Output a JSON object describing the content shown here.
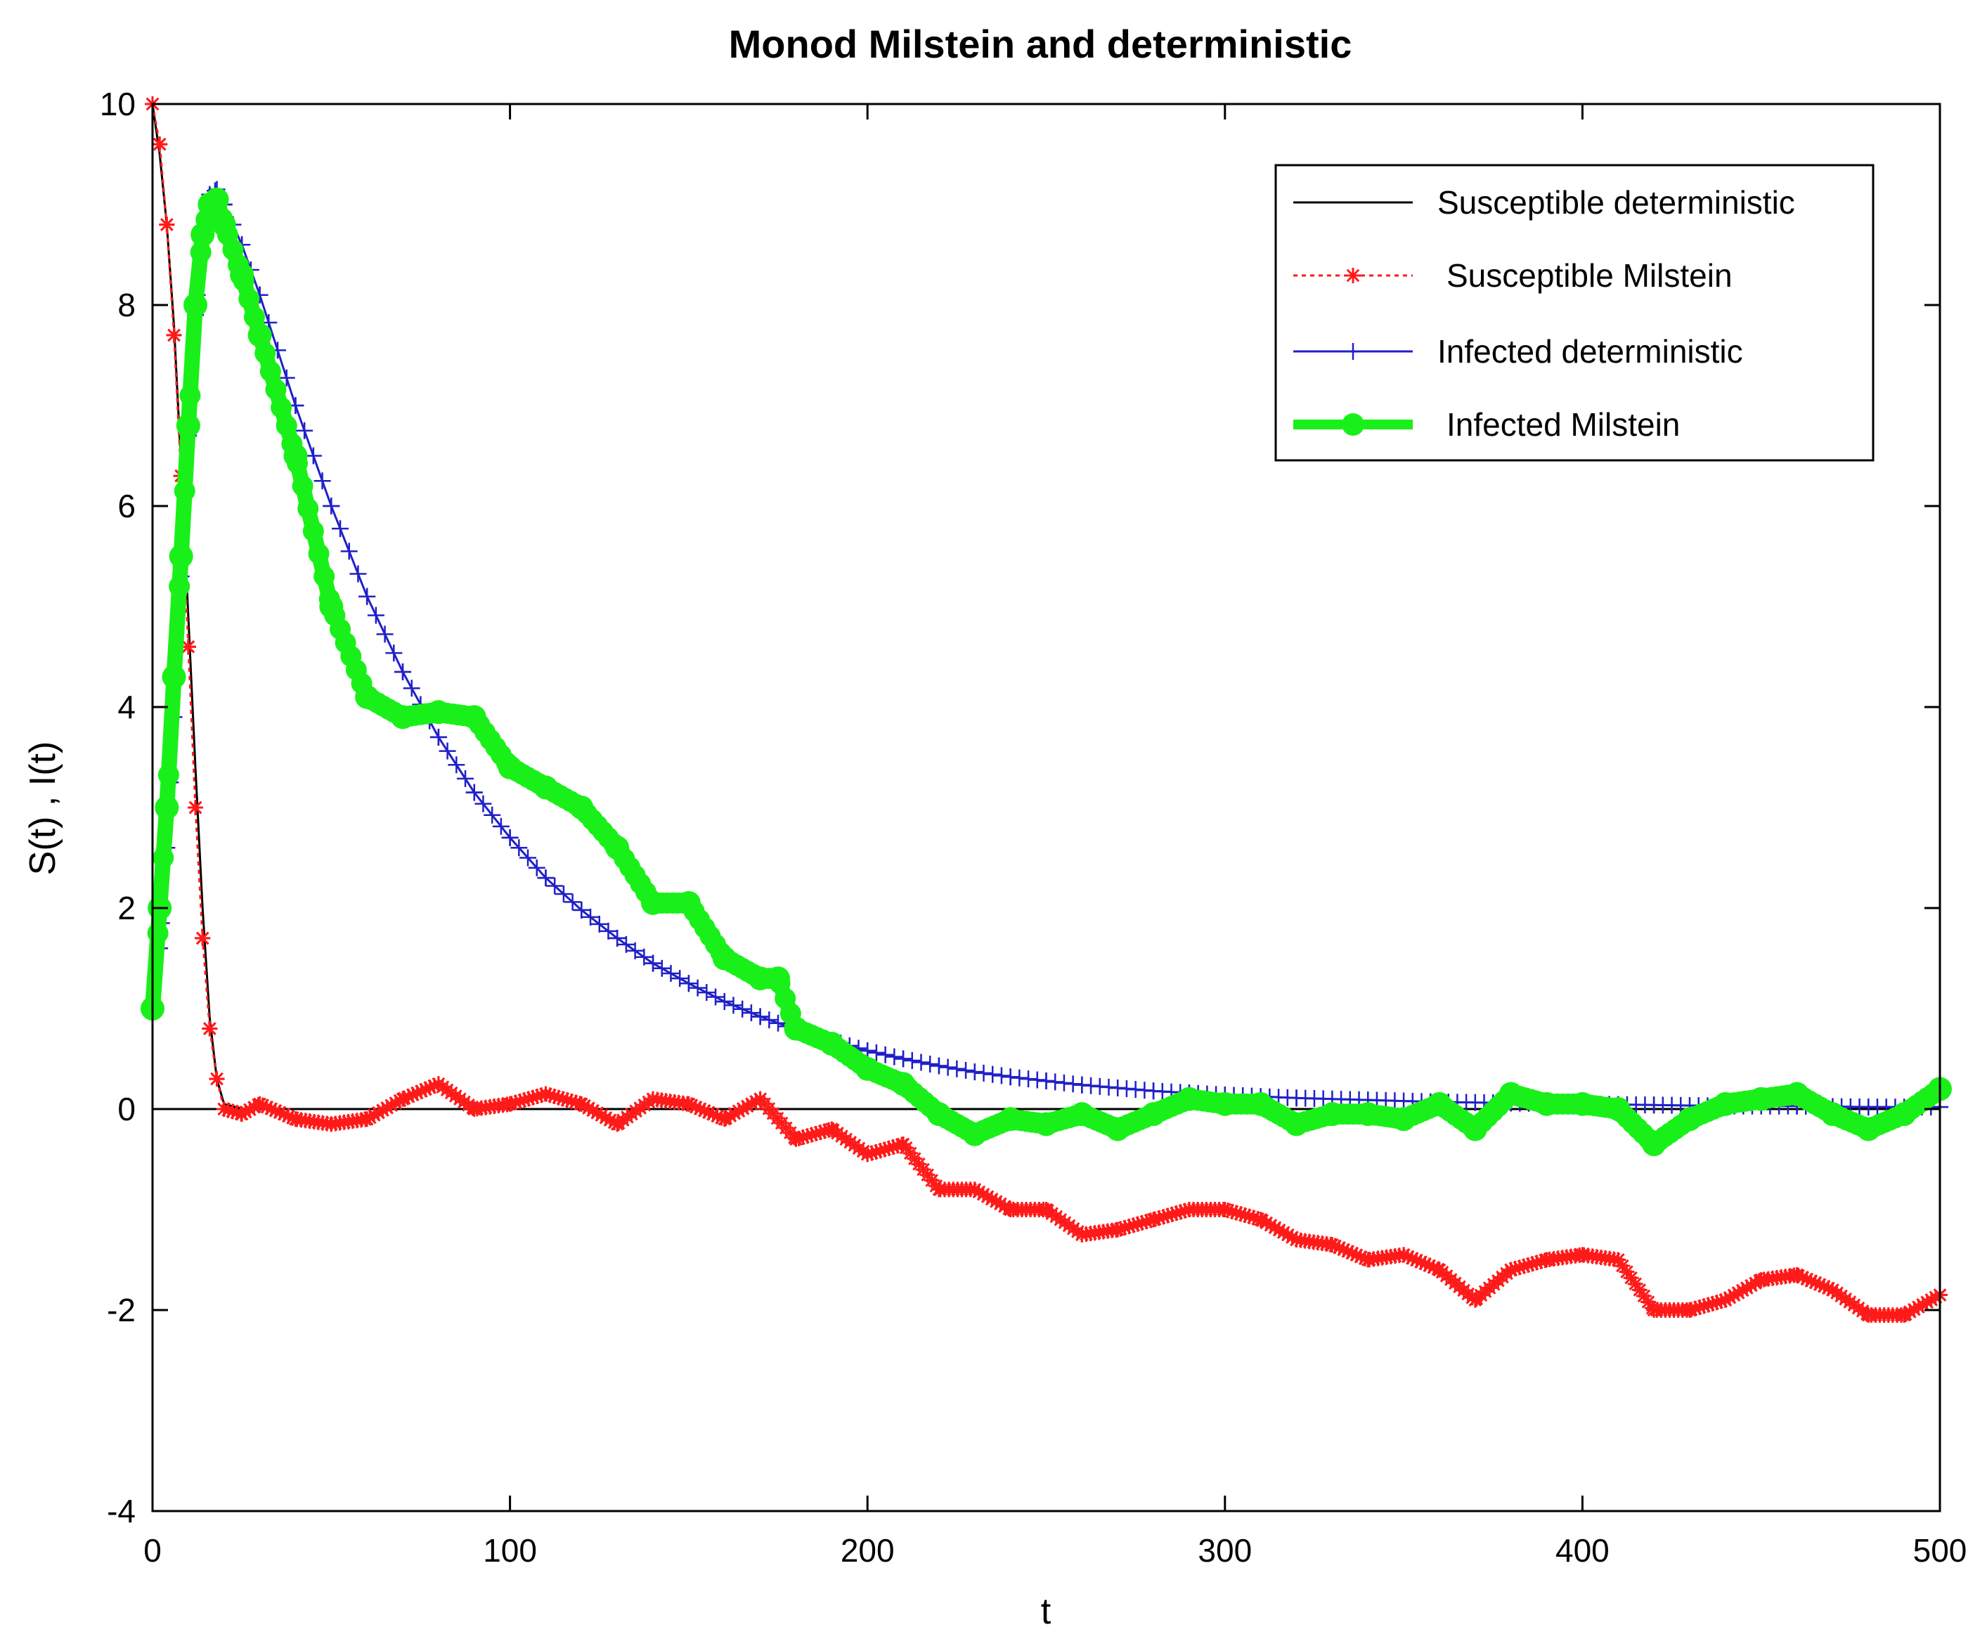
{
  "chart_data": {
    "type": "line",
    "title": "Monod Milstein and deterministic",
    "xlabel": "t",
    "ylabel": "S(t) , I(t)",
    "xlim": [
      0,
      500
    ],
    "ylim": [
      -4,
      10
    ],
    "xticks": [
      0,
      100,
      200,
      300,
      400,
      500
    ],
    "yticks": [
      -4,
      -2,
      0,
      2,
      4,
      6,
      8,
      10
    ],
    "grid": false,
    "legend_position": "top-right",
    "colors": {
      "susceptible_deterministic": "#000000",
      "susceptible_milstein": "#ff1a1a",
      "infected_deterministic": "#2020c8",
      "infected_milstein": "#19f019"
    },
    "series": [
      {
        "name": "Susceptible deterministic",
        "style": "solid",
        "x": [
          0,
          2,
          4,
          6,
          8,
          10,
          12,
          14,
          16,
          18,
          20,
          25,
          30,
          50,
          100,
          200,
          300,
          400,
          500
        ],
        "values": [
          10,
          9.5,
          8.8,
          7.8,
          6.4,
          4.9,
          3.4,
          2.0,
          0.9,
          0.3,
          0.05,
          0.0,
          0.0,
          0.0,
          0.0,
          0.0,
          0.0,
          0.0,
          0.0
        ]
      },
      {
        "name": "Susceptible Milstein",
        "style": "dotted-star",
        "x": [
          0,
          2,
          4,
          6,
          8,
          10,
          12,
          14,
          16,
          18,
          20,
          25,
          30,
          40,
          50,
          60,
          70,
          80,
          90,
          100,
          110,
          120,
          130,
          140,
          150,
          160,
          170,
          180,
          190,
          200,
          210,
          220,
          230,
          240,
          250,
          260,
          270,
          280,
          290,
          300,
          310,
          320,
          330,
          340,
          350,
          360,
          370,
          380,
          390,
          400,
          410,
          420,
          430,
          440,
          450,
          460,
          470,
          480,
          490,
          500
        ],
        "values": [
          10,
          9.6,
          8.8,
          7.7,
          6.3,
          4.6,
          3.0,
          1.7,
          0.8,
          0.3,
          0.0,
          -0.05,
          0.05,
          -0.1,
          -0.15,
          -0.1,
          0.1,
          0.25,
          0.0,
          0.05,
          0.15,
          0.05,
          -0.15,
          0.1,
          0.05,
          -0.1,
          0.1,
          -0.3,
          -0.2,
          -0.45,
          -0.35,
          -0.8,
          -0.8,
          -1.0,
          -1.0,
          -1.25,
          -1.2,
          -1.1,
          -1.0,
          -1.0,
          -1.1,
          -1.3,
          -1.35,
          -1.5,
          -1.45,
          -1.6,
          -1.9,
          -1.6,
          -1.5,
          -1.45,
          -1.5,
          -2.0,
          -2.0,
          -1.9,
          -1.7,
          -1.65,
          -1.8,
          -2.05,
          -2.05,
          -1.85
        ]
      },
      {
        "name": "Infected deterministic",
        "style": "plus-marker",
        "x": [
          0,
          2,
          4,
          6,
          8,
          10,
          12,
          14,
          16,
          18,
          20,
          25,
          30,
          40,
          50,
          60,
          70,
          80,
          90,
          100,
          110,
          120,
          130,
          140,
          150,
          160,
          170,
          180,
          190,
          200,
          210,
          220,
          230,
          240,
          250,
          260,
          270,
          280,
          290,
          300,
          320,
          340,
          360,
          380,
          400,
          420,
          440,
          460,
          480,
          500
        ],
        "values": [
          1.0,
          1.6,
          2.6,
          3.9,
          5.3,
          6.7,
          7.9,
          8.7,
          9.1,
          9.15,
          9.0,
          8.6,
          8.1,
          7.0,
          6.0,
          5.1,
          4.35,
          3.7,
          3.15,
          2.7,
          2.3,
          1.98,
          1.7,
          1.45,
          1.25,
          1.07,
          0.92,
          0.79,
          0.68,
          0.58,
          0.5,
          0.43,
          0.37,
          0.32,
          0.28,
          0.24,
          0.21,
          0.18,
          0.16,
          0.14,
          0.11,
          0.09,
          0.07,
          0.06,
          0.05,
          0.04,
          0.03,
          0.03,
          0.02,
          0.02
        ]
      },
      {
        "name": "Infected Milstein",
        "style": "thick-dashed-circle",
        "x": [
          0,
          2,
          4,
          6,
          8,
          10,
          12,
          14,
          16,
          18,
          20,
          25,
          30,
          40,
          50,
          60,
          70,
          80,
          90,
          100,
          110,
          120,
          130,
          140,
          150,
          160,
          170,
          175,
          180,
          190,
          200,
          210,
          220,
          230,
          240,
          250,
          260,
          270,
          280,
          290,
          300,
          310,
          320,
          330,
          340,
          350,
          360,
          370,
          380,
          390,
          400,
          410,
          420,
          430,
          440,
          450,
          460,
          470,
          480,
          490,
          500
        ],
        "values": [
          1.0,
          2.0,
          3.0,
          4.3,
          5.5,
          6.8,
          8.0,
          8.7,
          9.0,
          9.05,
          8.8,
          8.3,
          7.7,
          6.5,
          5.0,
          4.1,
          3.9,
          3.95,
          3.9,
          3.4,
          3.2,
          3.0,
          2.6,
          2.05,
          2.05,
          1.5,
          1.3,
          1.3,
          0.8,
          0.65,
          0.4,
          0.25,
          -0.05,
          -0.25,
          -0.1,
          -0.15,
          -0.05,
          -0.2,
          -0.05,
          0.1,
          0.05,
          0.05,
          -0.15,
          -0.05,
          -0.05,
          -0.1,
          0.05,
          -0.2,
          0.15,
          0.05,
          0.05,
          0.0,
          -0.35,
          -0.1,
          0.05,
          0.1,
          0.15,
          -0.05,
          -0.2,
          -0.05,
          0.2
        ]
      }
    ]
  }
}
